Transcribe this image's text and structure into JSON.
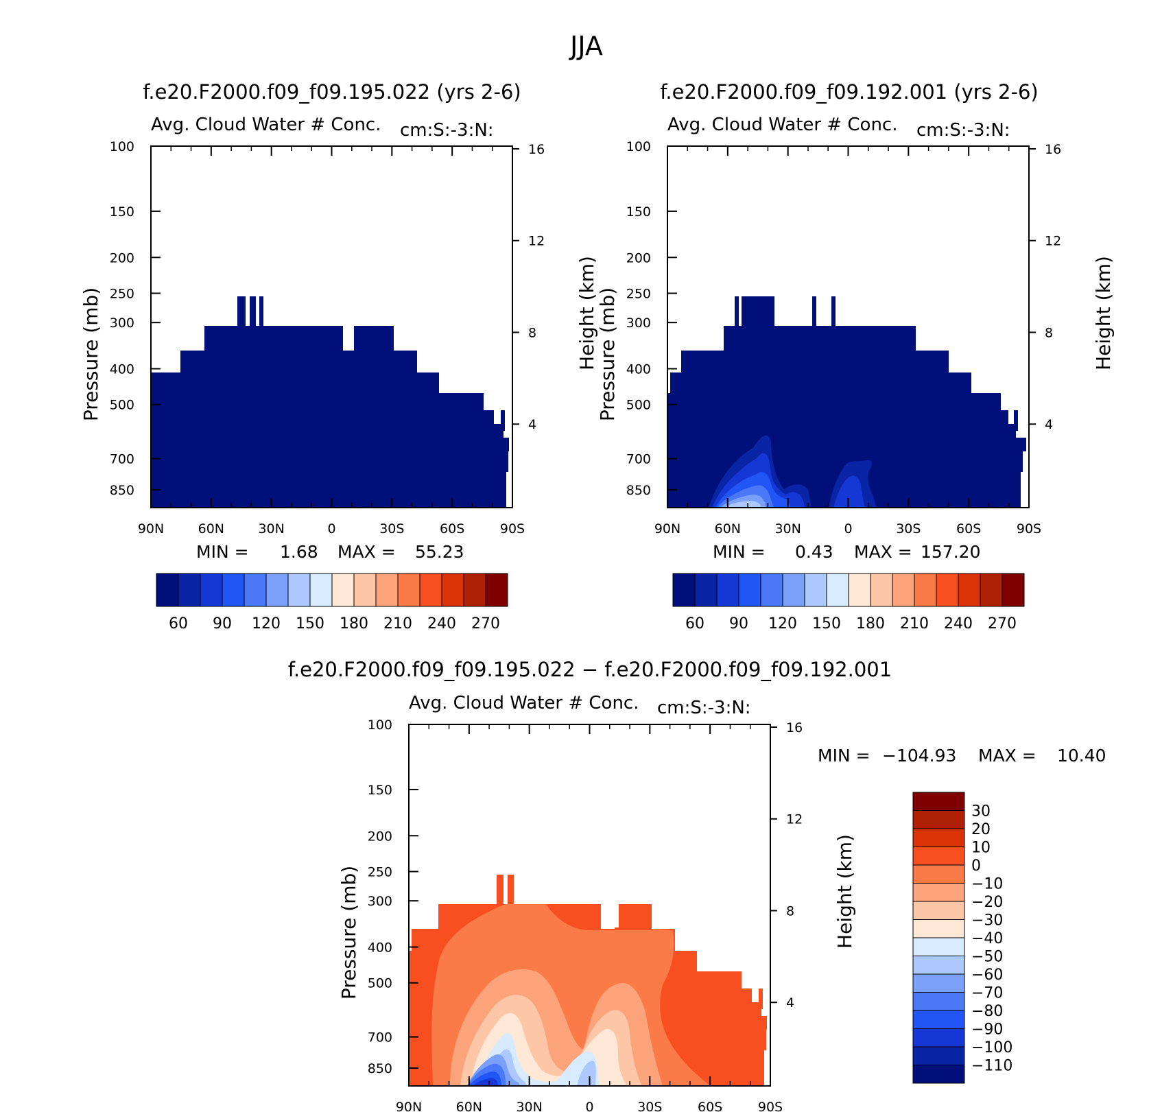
{
  "season": "JJA",
  "chart_data": [
    {
      "type": "contour",
      "id": "top-left",
      "case_title": "f.e20.F2000.f09_f09.195.022 (yrs 2-6)",
      "variable_title": "Avg. Cloud Water # Conc.",
      "units_title": "cm:S:-3:N:",
      "ylabel": "Pressure (mb)",
      "ylabel_right": "Height (km)",
      "x_ticks": [
        "90N",
        "60N",
        "30N",
        "0",
        "30S",
        "60S",
        "90S"
      ],
      "x_range": [
        90,
        -90
      ],
      "y_ticks": [
        100,
        150,
        200,
        250,
        300,
        400,
        500,
        700,
        850
      ],
      "y_range": [
        100,
        950
      ],
      "height_ticks": [
        16,
        12,
        8,
        4
      ],
      "min_label": "MIN =",
      "min_value": "1.68",
      "max_label": "MAX =",
      "max_value": "55.23",
      "colorbar_labels": [
        "60",
        "90",
        "120",
        "150",
        "180",
        "210",
        "240",
        "270"
      ],
      "colorbar_colors": [
        "#000f7a",
        "#0a24a6",
        "#1537d6",
        "#2255f5",
        "#4a78f7",
        "#7aa0fa",
        "#adc8fc",
        "#d8ebfd",
        "#fde8d6",
        "#fcc6a7",
        "#fba37a",
        "#fa7a48",
        "#f74f1f",
        "#dc3208",
        "#b02005",
        "#7f0000"
      ],
      "regions": [
        {
          "name": "cloud-layer",
          "value_range": [
            0,
            60
          ],
          "color": "#000f7a"
        }
      ]
    },
    {
      "type": "contour",
      "id": "top-right",
      "case_title": "f.e20.F2000.f09_f09.192.001 (yrs 2-6)",
      "variable_title": "Avg. Cloud Water # Conc.",
      "units_title": "cm:S:-3:N:",
      "ylabel": "Pressure (mb)",
      "ylabel_right": "Height (km)",
      "x_ticks": [
        "90N",
        "60N",
        "30N",
        "0",
        "30S",
        "60S",
        "90S"
      ],
      "x_range": [
        90,
        -90
      ],
      "y_ticks": [
        100,
        150,
        200,
        250,
        300,
        400,
        500,
        700,
        850
      ],
      "y_range": [
        100,
        950
      ],
      "height_ticks": [
        16,
        12,
        8,
        4
      ],
      "min_label": "MIN =",
      "min_value": "0.43",
      "max_label": "MAX =",
      "max_value": "157.20",
      "colorbar_labels": [
        "60",
        "90",
        "120",
        "150",
        "180",
        "210",
        "240",
        "270"
      ],
      "colorbar_colors": [
        "#000f7a",
        "#0a24a6",
        "#1537d6",
        "#2255f5",
        "#4a78f7",
        "#7aa0fa",
        "#adc8fc",
        "#d8ebfd",
        "#fde8d6",
        "#fcc6a7",
        "#fba37a",
        "#fa7a48",
        "#f74f1f",
        "#dc3208",
        "#b02005",
        "#7f0000"
      ],
      "regions": [
        {
          "name": "cloud-layer",
          "value_range": [
            0,
            60
          ],
          "color": "#000f7a"
        },
        {
          "name": "nh-lowlevel-maximum",
          "value_range": [
            60,
            157.2
          ],
          "color": "#4a78f7"
        },
        {
          "name": "equatorial-lowlevel-maximum",
          "value_range": [
            60,
            90
          ],
          "color": "#1537d6"
        }
      ]
    },
    {
      "type": "contour",
      "id": "bottom-difference",
      "case_title": "f.e20.F2000.f09_f09.195.022 − f.e20.F2000.f09_f09.192.001",
      "variable_title": "Avg. Cloud Water # Conc.",
      "units_title": "cm:S:-3:N:",
      "ylabel": "Pressure (mb)",
      "ylabel_right": "Height (km)",
      "x_ticks": [
        "90N",
        "60N",
        "30N",
        "0",
        "30S",
        "60S",
        "90S"
      ],
      "x_range": [
        90,
        -90
      ],
      "y_ticks": [
        100,
        150,
        200,
        250,
        300,
        400,
        500,
        700,
        850
      ],
      "y_range": [
        100,
        950
      ],
      "height_ticks": [
        16,
        12,
        8,
        4
      ],
      "min_label": "MIN =",
      "min_value": "−104.93",
      "max_label": "MAX =",
      "max_value": "10.40",
      "colorbar_labels": [
        "30",
        "20",
        "10",
        "0",
        "−10",
        "−20",
        "−30",
        "−40",
        "−50",
        "−60",
        "−70",
        "−80",
        "−90",
        "−100",
        "−110"
      ],
      "colorbar_colors": [
        "#7f0000",
        "#b02005",
        "#dc3208",
        "#f74f1f",
        "#fa7a48",
        "#fba37a",
        "#fcc6a7",
        "#fde8d6",
        "#d8ebfd",
        "#adc8fc",
        "#7aa0fa",
        "#4a78f7",
        "#2255f5",
        "#1537d6",
        "#0a24a6",
        "#000f7a"
      ],
      "regions": [
        {
          "name": "upper-outer-band",
          "value_range": [
            0,
            10
          ],
          "color": "#f74f1f"
        },
        {
          "name": "broad-negative",
          "value_range": [
            -10,
            0
          ],
          "color": "#fa7a48"
        },
        {
          "name": "moderate-negative",
          "value_range": [
            -20,
            -10
          ],
          "color": "#fba37a"
        },
        {
          "name": "stronger-negative",
          "value_range": [
            -30,
            -20
          ],
          "color": "#fcc6a7"
        },
        {
          "name": "core-negative",
          "value_range": [
            -50,
            -30
          ],
          "color": "#d8ebfd"
        },
        {
          "name": "nh-minimum",
          "value_range": [
            -104.93,
            -50
          ],
          "color": "#2255f5"
        }
      ]
    }
  ]
}
